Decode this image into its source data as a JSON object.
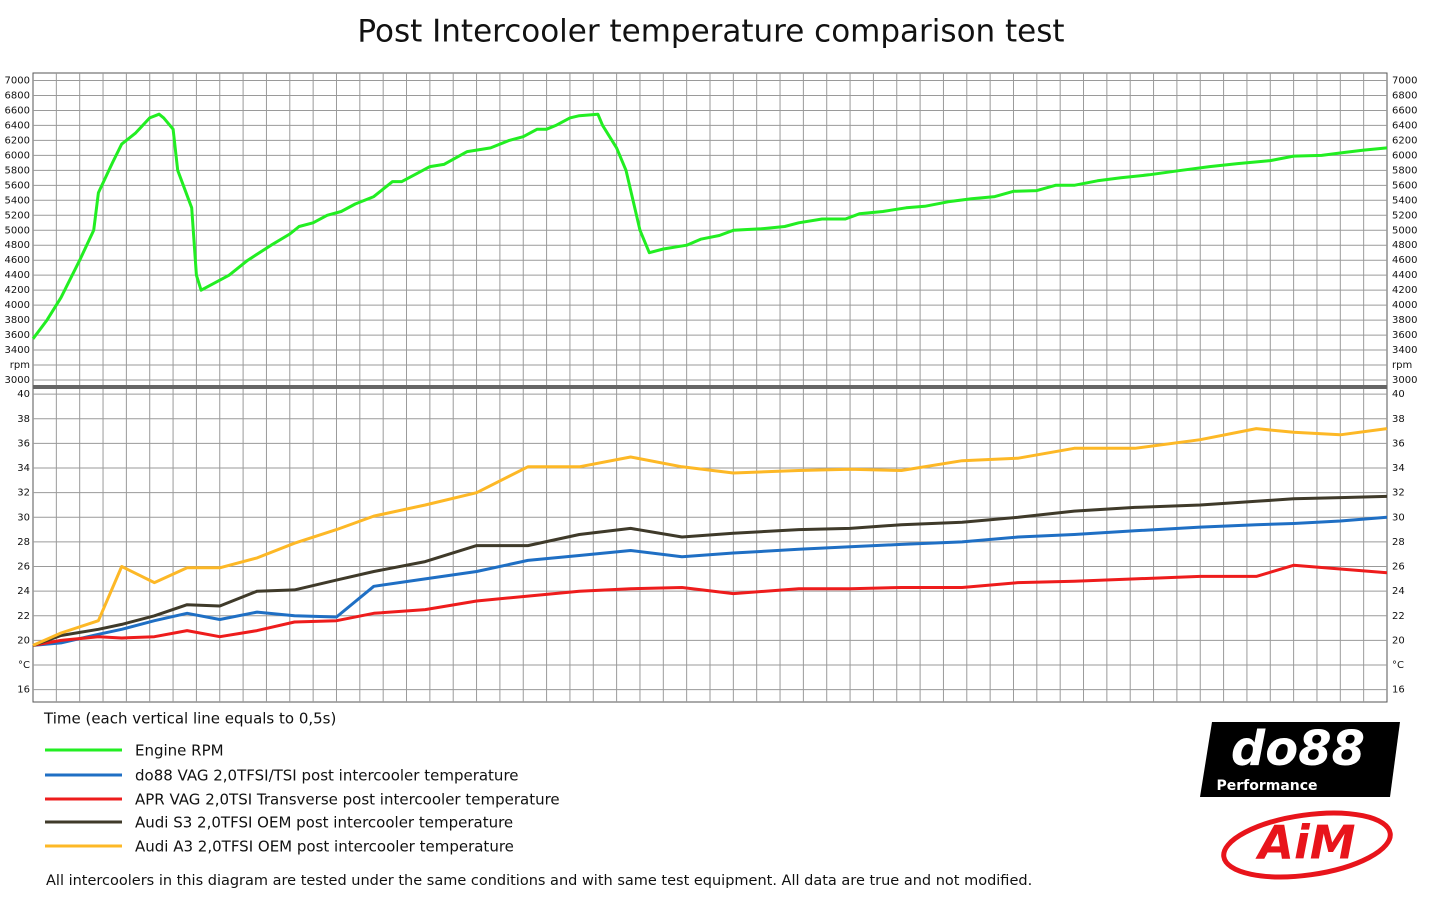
{
  "title": "Post Intercooler temperature comparison test",
  "x_label": "Time (each vertical line equals to 0,5s)",
  "note": "All intercoolers in this diagram are tested under the same conditions and with same test equipment. All data are true and not modified.",
  "logos": {
    "do88": "do88",
    "do88_sub": "Performance",
    "aim": "AiM"
  },
  "chart_data": [
    {
      "type": "line",
      "x": [
        0,
        0.3,
        0.6,
        1.0,
        1.3,
        1.4,
        1.7,
        1.9,
        2.2,
        2.5,
        2.7,
        2.8,
        3.0,
        3.1,
        3.4,
        3.5,
        3.6,
        3.9,
        4.2,
        4.6,
        5.1,
        5.5,
        5.7,
        6.0,
        6.3,
        6.6,
        6.9,
        7.3,
        7.4,
        7.7,
        7.9,
        8.2,
        8.5,
        8.8,
        9.3,
        9.8,
        10.2,
        10.5,
        10.8,
        11.0,
        11.2,
        11.5,
        11.7,
        12.1,
        12.2,
        12.5,
        12.7,
        13.0,
        13.2,
        13.5,
        14.0,
        14.3,
        14.7,
        15.0,
        15.6,
        16.1,
        16.4,
        16.9,
        17.4,
        17.7,
        18.2,
        18.7,
        19.1,
        19.6,
        20.1,
        20.6,
        21.0,
        21.5,
        21.9,
        22.3,
        22.8,
        23.3,
        23.9,
        24.6,
        25.2,
        25.8,
        26.5,
        27.0,
        27.6,
        28.1,
        28.5,
        29.0
      ],
      "series": [
        {
          "name": "Engine RPM",
          "color": "#22ee22",
          "values": [
            3550,
            3800,
            4100,
            4600,
            5000,
            5500,
            5900,
            6150,
            6300,
            6500,
            6550,
            6500,
            6350,
            5800,
            5300,
            4400,
            4200,
            4300,
            4400,
            4600,
            4800,
            4950,
            5050,
            5100,
            5200,
            5250,
            5350,
            5450,
            5500,
            5650,
            5650,
            5750,
            5850,
            5880,
            6050,
            6100,
            6200,
            6250,
            6350,
            6350,
            6400,
            6500,
            6530,
            6550,
            6400,
            6100,
            5800,
            5000,
            4700,
            4750,
            4800,
            4880,
            4930,
            5000,
            5020,
            5050,
            5100,
            5150,
            5150,
            5220,
            5250,
            5300,
            5320,
            5380,
            5420,
            5450,
            5520,
            5530,
            5600,
            5600,
            5660,
            5700,
            5740,
            5800,
            5850,
            5890,
            5930,
            5990,
            6000,
            6040,
            6070,
            6100
          ]
        }
      ],
      "xlim": [
        0,
        29
      ],
      "xticks": [
        0.5,
        1,
        1.5,
        2,
        2.5,
        3,
        3.5,
        4,
        4.5,
        5,
        5.5,
        6,
        6.5,
        7,
        7.5,
        8,
        8.5,
        9,
        9.5,
        10,
        10.5,
        11,
        11.5,
        12,
        12.5,
        13,
        13.5,
        14,
        14.5,
        15,
        15.5,
        16,
        16.5,
        17,
        17.5,
        18,
        18.5,
        19,
        19.5,
        20,
        20.5,
        21,
        21.5,
        22,
        22.5,
        23,
        23.5,
        24,
        24.5,
        25,
        25.5,
        26,
        26.5,
        27,
        27.5,
        28,
        28.5
      ],
      "ylim": [
        2920,
        7060
      ],
      "yticks": [
        3000,
        {
          "value": 3200,
          "label": "rpm"
        },
        3400,
        3600,
        3800,
        4000,
        4200,
        4400,
        4600,
        4800,
        5000,
        5200,
        5400,
        5600,
        5800,
        6000,
        6200,
        6400,
        6600,
        6800,
        7000
      ],
      "grid": true
    },
    {
      "type": "line",
      "x": [
        0,
        0.6,
        1.4,
        1.9,
        2.6,
        3.3,
        4.0,
        4.8,
        5.6,
        6.5,
        7.3,
        8.4,
        9.5,
        10.6,
        11.7,
        12.8,
        13.9,
        15.0,
        16.4,
        17.5,
        18.6,
        19.9,
        21.1,
        22.3,
        23.6,
        25.0,
        26.2,
        27.0,
        28.0,
        29.0
      ],
      "series": [
        {
          "name": "do88 VAG 2,0TFSI/TSI post intercooler temperature",
          "color": "#1f6fc4",
          "values": [
            19.6,
            19.8,
            20.5,
            20.9,
            21.6,
            22.2,
            21.7,
            22.3,
            22.0,
            21.9,
            24.4,
            25.0,
            25.6,
            26.5,
            26.9,
            27.3,
            26.8,
            27.1,
            27.4,
            27.6,
            27.8,
            28.0,
            28.4,
            28.6,
            28.9,
            29.2,
            29.4,
            29.5,
            29.7,
            30.0
          ]
        },
        {
          "name": "APR VAG 2,0TSI Transverse post intercooler temperature",
          "color": "#ee1c1c",
          "values": [
            19.6,
            20.0,
            20.3,
            20.2,
            20.3,
            20.8,
            20.3,
            20.8,
            21.5,
            21.6,
            22.2,
            22.5,
            23.2,
            23.6,
            24.0,
            24.2,
            24.3,
            23.8,
            24.2,
            24.2,
            24.3,
            24.3,
            24.7,
            24.8,
            25.0,
            25.2,
            25.2,
            26.1,
            25.8,
            25.5
          ]
        },
        {
          "name": "Audi S3 2,0TFSI OEM post intercooler temperature",
          "color": "#3f3a2a",
          "values": [
            19.6,
            20.4,
            20.9,
            21.3,
            22.0,
            22.9,
            22.8,
            24.0,
            24.1,
            24.9,
            25.6,
            26.4,
            27.7,
            27.7,
            28.6,
            29.1,
            28.4,
            28.7,
            29.0,
            29.1,
            29.4,
            29.6,
            30.0,
            30.5,
            30.8,
            31.0,
            31.3,
            31.5,
            31.6,
            31.7
          ]
        },
        {
          "name": "Audi A3 2,0TFSI OEM post intercooler temperature",
          "color": "#fdb826",
          "values": [
            19.6,
            20.6,
            21.6,
            26.0,
            24.7,
            25.9,
            25.9,
            26.7,
            27.9,
            29.0,
            30.1,
            31.0,
            32.0,
            34.1,
            34.1,
            34.9,
            34.1,
            33.6,
            33.8,
            33.9,
            33.8,
            34.6,
            34.8,
            35.6,
            35.6,
            36.3,
            37.2,
            36.9,
            36.7,
            37.2
          ]
        }
      ],
      "xlim": [
        0,
        29
      ],
      "xticks": [
        0.5,
        1,
        1.5,
        2,
        2.5,
        3,
        3.5,
        4,
        4.5,
        5,
        5.5,
        6,
        6.5,
        7,
        7.5,
        8,
        8.5,
        9,
        9.5,
        10,
        10.5,
        11,
        11.5,
        12,
        12.5,
        13,
        13.5,
        14,
        14.5,
        15,
        15.5,
        16,
        16.5,
        17,
        17.5,
        18,
        18.5,
        19,
        19.5,
        20,
        20.5,
        21,
        21.5,
        22,
        22.5,
        23,
        23.5,
        24,
        24.5,
        25,
        25.5,
        26,
        26.5,
        27,
        27.5,
        28,
        28.5
      ],
      "ylim": [
        15,
        40.5
      ],
      "yticks": [
        16,
        {
          "value": 18,
          "label": "°C"
        },
        20,
        22,
        24,
        26,
        28,
        30,
        32,
        34,
        36,
        38,
        40
      ],
      "grid": true
    }
  ]
}
